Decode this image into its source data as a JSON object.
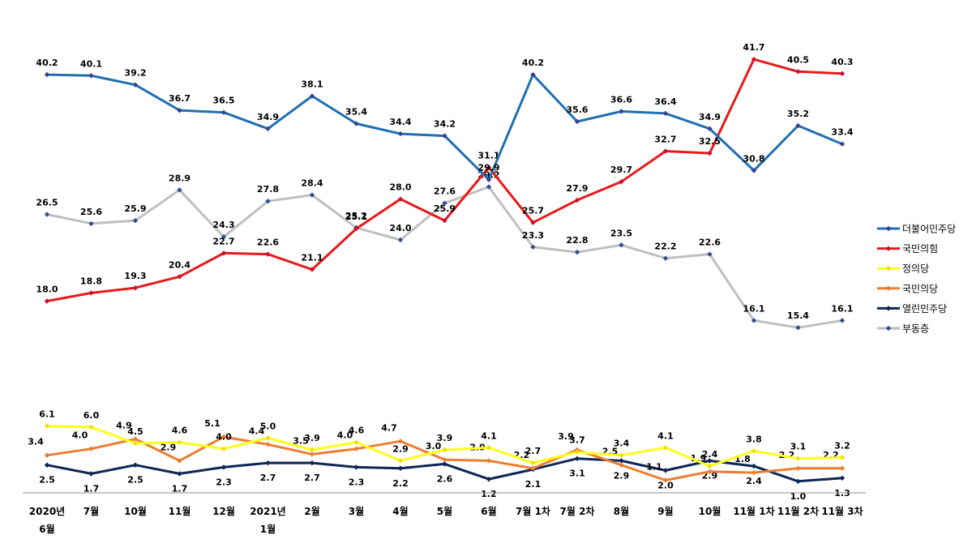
{
  "chart_data": {
    "type": "line",
    "categories": [
      [
        "2020년",
        "6월"
      ],
      [
        "7월"
      ],
      [
        "10월"
      ],
      [
        "11월"
      ],
      [
        "12월"
      ],
      [
        "2021년",
        "1월"
      ],
      [
        "2월"
      ],
      [
        "3월"
      ],
      [
        "4월"
      ],
      [
        "5월"
      ],
      [
        "6월"
      ],
      [
        "7월 1차"
      ],
      [
        "7월 2차"
      ],
      [
        "8월"
      ],
      [
        "9월"
      ],
      [
        "10월"
      ],
      [
        "11월 1차"
      ],
      [
        "11월 2차"
      ],
      [
        "11월 3차"
      ]
    ],
    "series": [
      {
        "name": "더불어민주당",
        "color": "#1f6fb2",
        "marker": "#3a3f8f",
        "values": [
          40.2,
          40.1,
          39.2,
          36.7,
          36.5,
          34.9,
          38.1,
          35.4,
          34.4,
          34.2,
          29.9,
          40.2,
          35.6,
          36.6,
          36.4,
          34.9,
          30.8,
          35.2,
          33.4
        ]
      },
      {
        "name": "국민의힘",
        "color": "#e8191a",
        "marker": "#c8102e",
        "values": [
          18.0,
          18.8,
          19.3,
          20.4,
          22.7,
          22.6,
          21.1,
          25.1,
          28.0,
          25.9,
          31.1,
          25.7,
          27.9,
          29.7,
          32.7,
          32.5,
          41.7,
          40.5,
          40.3
        ]
      },
      {
        "name": "정의당",
        "color": "#ffff1a",
        "marker": "#f0e000",
        "values": [
          6.1,
          6.0,
          4.5,
          4.6,
          4.0,
          5.0,
          3.9,
          4.6,
          2.9,
          3.9,
          4.1,
          2.7,
          3.7,
          3.4,
          4.1,
          2.4,
          3.8,
          3.1,
          3.2
        ]
      },
      {
        "name": "국민의당",
        "color": "#ed7d31",
        "marker": "#ed7d31",
        "values": [
          3.4,
          4.0,
          4.9,
          2.9,
          5.1,
          4.4,
          3.5,
          4.0,
          4.7,
          3.0,
          2.9,
          2.2,
          3.9,
          2.5,
          1.1,
          1.9,
          1.8,
          2.2,
          2.2
        ]
      },
      {
        "name": "열린민주당",
        "color": "#0f2555",
        "marker": "#0f2555",
        "values": [
          2.5,
          1.7,
          2.5,
          1.7,
          2.3,
          2.7,
          2.7,
          2.3,
          2.2,
          2.6,
          1.2,
          2.1,
          3.1,
          2.9,
          2.0,
          2.9,
          2.4,
          1.0,
          1.3
        ]
      },
      {
        "name": "부동층",
        "color": "#bfbfbf",
        "marker": "#2f4f8f",
        "values": [
          26.5,
          25.6,
          25.9,
          28.9,
          24.3,
          27.8,
          28.4,
          25.2,
          24.0,
          27.6,
          29.2,
          23.3,
          22.8,
          23.5,
          22.2,
          22.6,
          16.1,
          15.4,
          16.1
        ]
      }
    ],
    "title": "",
    "xlabel": "",
    "ylabel": "",
    "ylim": [
      0,
      43
    ],
    "grid": false,
    "legend": "right"
  }
}
